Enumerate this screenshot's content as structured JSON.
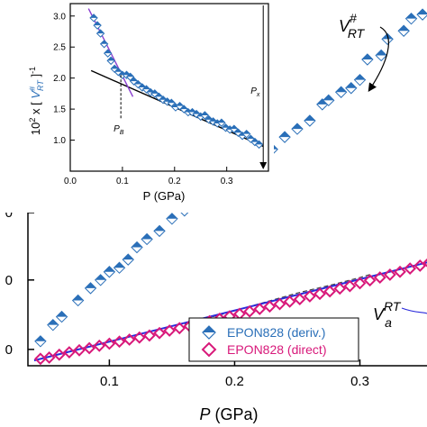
{
  "chart_data": [
    {
      "type": "scatter",
      "title": "",
      "xlabel": "P (GPa)",
      "xlabel_italic": "P",
      "xlabel_unit": "(GPa)",
      "ylabel": "",
      "xlim": [
        0.035,
        0.355
      ],
      "ylim": [
        0.1,
        1.0
      ],
      "xticks": [
        0.1,
        0.2,
        0.3
      ],
      "xtick_labels": [
        "0.1",
        "0.2",
        "0.3"
      ],
      "yticks": [
        0.6,
        0.4,
        0.2,
        0.0
      ],
      "ytick_labels": [
        "0",
        "0",
        "0",
        "0"
      ],
      "grid": false,
      "legend": "bottom-right",
      "series": [
        {
          "name": "EPON828 (deriv.)",
          "color": "#2a6fb8",
          "marker": "half-filled-diamond",
          "x": [
            0.045,
            0.055,
            0.062,
            0.075,
            0.085,
            0.093,
            0.1,
            0.108,
            0.115,
            0.122,
            0.13,
            0.14,
            0.15,
            0.16,
            0.17,
            0.18,
            0.19,
            0.2,
            0.21,
            0.22,
            0.23,
            0.24,
            0.25,
            0.26,
            0.27,
            0.275,
            0.285,
            0.293,
            0.3,
            0.306,
            0.317,
            0.322,
            0.335,
            0.341,
            0.35
          ],
          "y": [
            0.16,
            0.2,
            0.22,
            0.26,
            0.29,
            0.31,
            0.33,
            0.34,
            0.36,
            0.39,
            0.41,
            0.43,
            0.46,
            0.48,
            0.52,
            0.55,
            0.57,
            0.58,
            0.6,
            0.62,
            0.63,
            0.66,
            0.68,
            0.7,
            0.74,
            0.75,
            0.77,
            0.78,
            0.8,
            0.85,
            0.86,
            0.9,
            0.92,
            0.95,
            0.96
          ]
        },
        {
          "name": "EPON828 (direct)",
          "color": "#d8197a",
          "marker": "open-diamond",
          "x": [
            0.045,
            0.052,
            0.06,
            0.068,
            0.076,
            0.084,
            0.092,
            0.1,
            0.108,
            0.116,
            0.124,
            0.132,
            0.14,
            0.148,
            0.156,
            0.164,
            0.172,
            0.18,
            0.188,
            0.196,
            0.204,
            0.212,
            0.22,
            0.228,
            0.236,
            0.244,
            0.252,
            0.26,
            0.268,
            0.276,
            0.284,
            0.292,
            0.3,
            0.308,
            0.316,
            0.324,
            0.332,
            0.34,
            0.348,
            0.355
          ],
          "y": [
            0.117,
            0.12,
            0.127,
            0.133,
            0.138,
            0.143,
            0.149,
            0.154,
            0.159,
            0.164,
            0.169,
            0.174,
            0.18,
            0.186,
            0.192,
            0.197,
            0.203,
            0.209,
            0.215,
            0.221,
            0.227,
            0.233,
            0.239,
            0.245,
            0.251,
            0.257,
            0.263,
            0.27,
            0.276,
            0.282,
            0.289,
            0.295,
            0.302,
            0.309,
            0.316,
            0.323,
            0.33,
            0.338,
            0.345,
            0.352
          ]
        }
      ],
      "fit_line": {
        "color": "#2b2bdb",
        "x": [
          0.04,
          0.355
        ],
        "y": [
          0.113,
          0.354
        ]
      },
      "dashed_curve": {
        "color": "#444444",
        "x": [
          0.16,
          0.19,
          0.22,
          0.25,
          0.28,
          0.3,
          0.31
        ],
        "y": [
          0.202,
          0.226,
          0.252,
          0.278,
          0.3,
          0.316,
          0.325
        ]
      },
      "annotations": [
        {
          "name": "v-rt-sharp-label",
          "text": "V",
          "sup": "#",
          "sub": "RT",
          "color": "#2a6fb8"
        },
        {
          "name": "v-a-rt-label",
          "text": "V",
          "sup": "RT",
          "sub": "a",
          "color": "#d8197a"
        }
      ]
    },
    {
      "type": "scatter",
      "title": "",
      "xlabel": "P  (GPa)",
      "ylabel": "10² x [ V#RT ]⁻¹",
      "ylabel_parts": [
        "10",
        "2",
        " x [ ",
        "V",
        "#",
        "RT",
        " ]",
        "-1"
      ],
      "xlim": [
        0.0,
        0.38
      ],
      "ylim": [
        0.5,
        3.2
      ],
      "xticks": [
        0.0,
        0.1,
        0.2,
        0.3
      ],
      "xtick_labels": [
        "0.0",
        "0.1",
        "0.2",
        "0.3"
      ],
      "yticks": [
        1.0,
        1.5,
        2.0,
        2.5,
        3.0
      ],
      "ytick_labels": [
        "1.0",
        "1.5",
        "2.0",
        "2.5",
        "3.0"
      ],
      "grid": false,
      "series": [
        {
          "name": "",
          "color": "#2a6fb8",
          "marker": "half-filled-diamond",
          "x": [
            0.045,
            0.052,
            0.058,
            0.065,
            0.072,
            0.078,
            0.085,
            0.092,
            0.1,
            0.108,
            0.115,
            0.122,
            0.13,
            0.138,
            0.146,
            0.154,
            0.162,
            0.17,
            0.178,
            0.186,
            0.194,
            0.202,
            0.21,
            0.218,
            0.226,
            0.234,
            0.242,
            0.25,
            0.258,
            0.266,
            0.274,
            0.282,
            0.29,
            0.298,
            0.306,
            0.314,
            0.322,
            0.33,
            0.338,
            0.346,
            0.354,
            0.362
          ],
          "y": [
            2.97,
            2.85,
            2.72,
            2.55,
            2.4,
            2.28,
            2.15,
            2.1,
            2.05,
            2.05,
            2.02,
            1.95,
            1.9,
            1.85,
            1.82,
            1.77,
            1.75,
            1.7,
            1.65,
            1.62,
            1.6,
            1.53,
            1.55,
            1.5,
            1.45,
            1.45,
            1.42,
            1.38,
            1.4,
            1.33,
            1.3,
            1.27,
            1.28,
            1.2,
            1.17,
            1.18,
            1.12,
            1.07,
            1.1,
            1.02,
            0.97,
            0.93
          ]
        }
      ],
      "lines": [
        {
          "name": "black-fit",
          "color": "#000000",
          "x": [
            0.04,
            0.37
          ],
          "y": [
            2.12,
            0.9
          ]
        },
        {
          "name": "purple-fit",
          "color": "#8a3fd0",
          "x": [
            0.035,
            0.12
          ],
          "y": [
            3.12,
            1.7
          ]
        }
      ],
      "markers": [
        {
          "label": "P",
          "sub": "B",
          "x": 0.097
        },
        {
          "label": "P",
          "sub": "x",
          "x": 0.37
        }
      ]
    }
  ]
}
